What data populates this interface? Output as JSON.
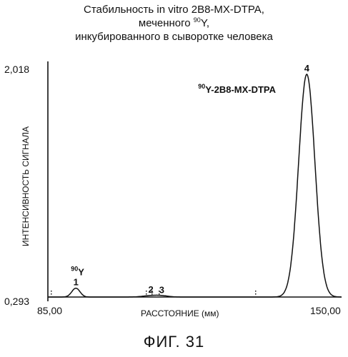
{
  "title": {
    "line1": "Стабильность in vitro 2B8-MX-DTPA,",
    "line2_prefix": "меченного ",
    "line2_sup": "90",
    "line2_suffix": "Y,",
    "line3": "инкубированного в сыворотке человека"
  },
  "figure_caption": "ФИГ. 31",
  "chart_data": {
    "type": "line",
    "ylabel": "ИНТЕНСИВНОСТЬ СИГНАЛА",
    "xlabel": "РАССТОЯНИЕ (мм)",
    "x_ticks": [
      "85,00",
      "150,00"
    ],
    "y_ticks": [
      "2,018",
      "0,293"
    ],
    "xlim": [
      85.0,
      150.0
    ],
    "ylim": [
      0.293,
      2.018
    ],
    "peaks": [
      {
        "id": "1",
        "label_sup": "90",
        "label_main": "Y",
        "x": 91.2,
        "y": 0.36,
        "width": 0.9
      },
      {
        "id": "2",
        "x": 107.8,
        "y": 0.303,
        "width": 1.8
      },
      {
        "id": "3",
        "x": 110.2,
        "y": 0.301,
        "width": 1.5
      },
      {
        "id": "4",
        "label_sup": "90",
        "label_main": "Y-2B8-MX-DTPA",
        "x": 142.3,
        "y": 1.98,
        "width": 1.8
      }
    ],
    "series": [
      {
        "x": [
          85.0,
          88.0,
          89.5,
          90.5,
          91.2,
          92.0,
          93.0,
          95.0,
          100.0,
          105.0,
          107.0,
          107.8,
          109.0,
          110.2,
          111.5,
          113.0,
          125.0,
          135.0,
          138.0,
          139.5,
          140.5,
          141.5,
          142.3,
          143.0,
          144.0,
          145.0,
          146.5,
          148.0,
          150.0
        ],
        "y": [
          0.293,
          0.296,
          0.31,
          0.345,
          0.36,
          0.345,
          0.31,
          0.296,
          0.294,
          0.296,
          0.3,
          0.303,
          0.301,
          0.301,
          0.297,
          0.294,
          0.293,
          0.294,
          0.33,
          0.5,
          0.9,
          1.6,
          1.98,
          1.8,
          1.0,
          0.55,
          0.36,
          0.305,
          0.295
        ]
      }
    ]
  }
}
